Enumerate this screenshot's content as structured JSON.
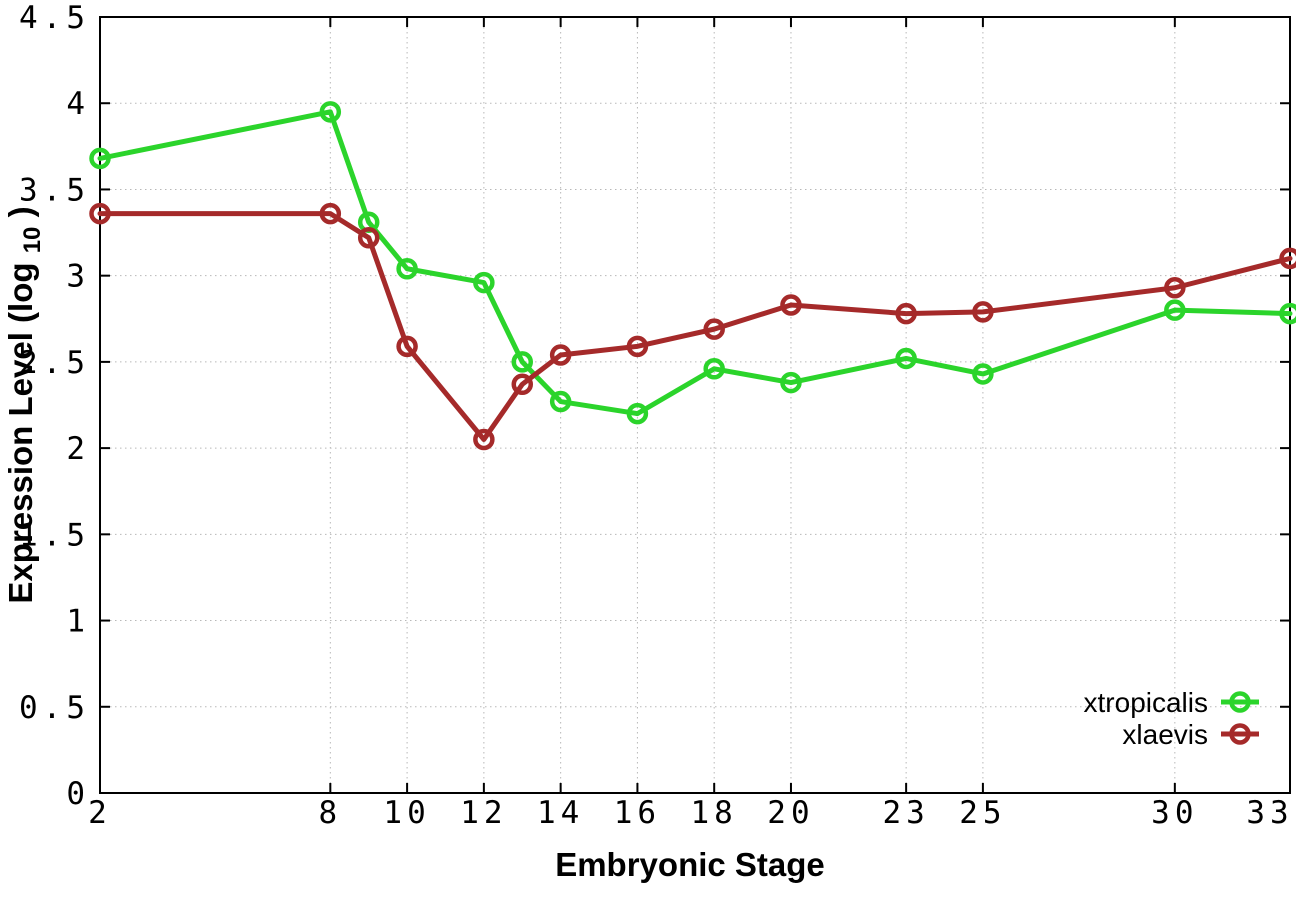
{
  "chart_data": {
    "type": "line",
    "title": "",
    "xlabel": "Embryonic Stage",
    "ylabel": "Expression Level (log10)",
    "ylabel_parts": {
      "main": "Expression Level (log",
      "subscript": "10",
      "close": ")"
    },
    "x": [
      2,
      8,
      9,
      10,
      12,
      13,
      14,
      16,
      18,
      20,
      23,
      25,
      30,
      33
    ],
    "xlim": [
      2,
      33
    ],
    "ylim": [
      0,
      4.5
    ],
    "xticks": [
      "2",
      "8",
      "10",
      "12",
      "14",
      "16",
      "18",
      "20",
      "23",
      "25",
      "30",
      "33"
    ],
    "yticks": [
      "0",
      "0.5",
      "1",
      "1.5",
      "2",
      "2.5",
      "3",
      "3.5",
      "4",
      "4.5"
    ],
    "grid": true,
    "legend_position": "bottom-right",
    "marker": "open-circle",
    "series": [
      {
        "name": "xtropicalis",
        "color": "#2bd42b",
        "values": [
          3.68,
          3.95,
          3.31,
          3.04,
          2.96,
          2.5,
          2.27,
          2.2,
          2.46,
          2.38,
          2.52,
          2.43,
          2.8,
          2.78
        ]
      },
      {
        "name": "xlaevis",
        "color": "#a52a2a",
        "values": [
          3.36,
          3.36,
          3.22,
          2.59,
          2.05,
          2.37,
          2.54,
          2.59,
          2.69,
          2.83,
          2.78,
          2.79,
          2.93,
          3.1
        ]
      }
    ]
  },
  "style_colors": {
    "grid": "#b8b8b8",
    "axis": "#000000",
    "background": "#ffffff"
  }
}
